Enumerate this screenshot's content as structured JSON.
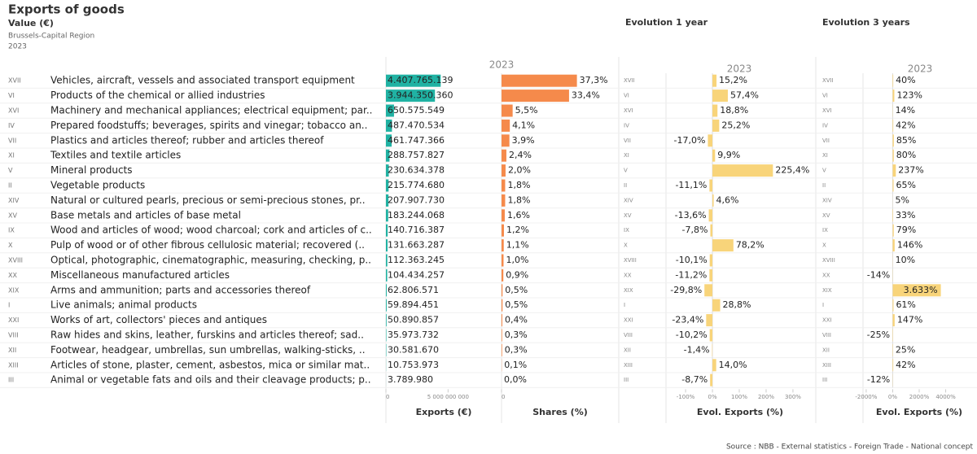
{
  "title": "Exports of goods",
  "subtitle": "Value (€)",
  "region": "Brussels-Capital Region",
  "year": "2023",
  "section_1y": "Evolution 1 year",
  "section_3y": "Evolution 3 years",
  "source": "Source : NBB - External statistics - Foreign Trade - National concept",
  "chart_data": [
    {
      "type": "hbar",
      "header": "2023",
      "xlabel": "Exports (€)",
      "color": "#20b2a3",
      "codes": [
        "XVII",
        "VI",
        "XVI",
        "IV",
        "VII",
        "XI",
        "V",
        "II",
        "XIV",
        "XV",
        "IX",
        "X",
        "XVIII",
        "XX",
        "XIX",
        "I",
        "XXI",
        "VIII",
        "XII",
        "XIII",
        "III"
      ],
      "categories": [
        "Vehicles, aircraft, vessels and associated transport equipment",
        "Products of the chemical or allied industries",
        "Machinery and mechanical appliances; electrical equipment; par..",
        "Prepared foodstuffs; beverages, spirits and vinegar; tobacco an..",
        "Plastics and articles thereof; rubber and articles thereof",
        "Textiles and textile articles",
        "Mineral products",
        "Vegetable products",
        "Natural or cultured pearls, precious or semi-precious stones, pr..",
        "Base metals and articles of base metal",
        "Wood and articles of wood; wood charcoal; cork and articles of c..",
        "Pulp of wood or of other fibrous cellulosic material; recovered (..",
        "Optical, photographic, cinematographic, measuring, checking, p..",
        "Miscellaneous manufactured articles",
        "Arms and ammunition; parts and accessories thereof",
        "Live animals; animal products",
        "Works of art, collectors' pieces and antiques",
        "Raw hides and skins, leather, furskins and articles thereof; sad..",
        "Footwear, headgear, umbrellas, sun umbrellas, walking-sticks, ..",
        "Articles of stone, plaster, cement, asbestos, mica or similar mat..",
        "Animal or vegetable fats and oils and their cleavage products; p.."
      ],
      "values": [
        4407765139,
        3944350360,
        650575549,
        487470534,
        461747366,
        288757827,
        230634378,
        215774680,
        207907730,
        183244068,
        140716387,
        131663287,
        112363245,
        104434257,
        62806571,
        59894451,
        50890857,
        35973732,
        30581670,
        10753973,
        3789980
      ],
      "value_labels": [
        "4.407.765.139",
        "3.944.350.360",
        "650.575.549",
        "487.470.534",
        "461.747.366",
        "288.757.827",
        "230.634.378",
        "215.774.680",
        "207.907.730",
        "183.244.068",
        "140.716.387",
        "131.663.287",
        "112.363.245",
        "104.434.257",
        "62.806.571",
        "59.894.451",
        "50.890.857",
        "35.973.732",
        "30.581.670",
        "10.753.973",
        "3.789.980"
      ],
      "xlim": [
        0,
        9300000000
      ],
      "xticks": [
        0,
        {
          "value": 5000000000,
          "label": "5 000 000 000"
        }
      ]
    },
    {
      "type": "hbar",
      "xlabel": "Shares (%)",
      "color": "#f58a4b",
      "values": [
        37.3,
        33.4,
        5.5,
        4.1,
        3.9,
        2.4,
        2.0,
        1.8,
        1.8,
        1.6,
        1.2,
        1.1,
        1.0,
        0.9,
        0.5,
        0.5,
        0.4,
        0.3,
        0.3,
        0.1,
        0.0
      ],
      "value_labels": [
        "37,3%",
        "33,4%",
        "5,5%",
        "4,1%",
        "3,9%",
        "2,4%",
        "2,0%",
        "1,8%",
        "1,8%",
        "1,6%",
        "1,2%",
        "1,1%",
        "1,0%",
        "0,9%",
        "0,5%",
        "0,5%",
        "0,4%",
        "0,3%",
        "0,3%",
        "0,1%",
        "0,0%"
      ],
      "xlim": [
        0,
        58
      ],
      "xticks": [
        0
      ]
    },
    {
      "type": "hbar",
      "header": "2023",
      "xlabel": "Evol. Exports (%)",
      "color": "#f8d47a",
      "categories": [
        "XVII",
        "VI",
        "XVI",
        "IV",
        "VII",
        "XI",
        "V",
        "II",
        "XIV",
        "XV",
        "IX",
        "X",
        "XVIII",
        "XX",
        "XIX",
        "I",
        "XXI",
        "VIII",
        "XII",
        "XIII",
        "III"
      ],
      "values": [
        15.2,
        57.4,
        18.8,
        25.2,
        -17.0,
        9.9,
        225.4,
        -11.1,
        4.6,
        -13.6,
        -7.8,
        78.2,
        -10.1,
        -11.2,
        -29.8,
        28.8,
        -23.4,
        -10.2,
        -1.4,
        14.0,
        -8.7
      ],
      "value_labels": [
        "15,2%",
        "57,4%",
        "18,8%",
        "25,2%",
        "-17,0%",
        "9,9%",
        "225,4%",
        "-11,1%",
        "4,6%",
        "-13,6%",
        "-7,8%",
        "78,2%",
        "-10,1%",
        "-11,2%",
        "-29,8%",
        "28,8%",
        "-23,4%",
        "-10,2%",
        "-1,4%",
        "14,0%",
        "-8,7%"
      ],
      "xlim": [
        -173,
        379
      ],
      "xticks": [
        {
          "value": -100,
          "label": "-100%"
        },
        {
          "value": 0,
          "label": "0%"
        },
        {
          "value": 100,
          "label": "100%"
        },
        {
          "value": 200,
          "label": "200%"
        },
        {
          "value": 300,
          "label": "300%"
        }
      ]
    },
    {
      "type": "hbar",
      "header": "2023",
      "xlabel": "Evol. Exports (%)",
      "color": "#f8d47a",
      "categories": [
        "XVII",
        "VI",
        "XVI",
        "IV",
        "VII",
        "XI",
        "V",
        "II",
        "XIV",
        "XV",
        "IX",
        "X",
        "XVIII",
        "XX",
        "XIX",
        "I",
        "XXI",
        "VIII",
        "XII",
        "XIII",
        "III"
      ],
      "values": [
        40,
        123,
        14,
        42,
        85,
        80,
        237,
        65,
        5,
        33,
        79,
        146,
        10,
        -14,
        3633,
        61,
        147,
        -25,
        25,
        42,
        -12
      ],
      "value_labels": [
        "40%",
        "123%",
        "14%",
        "42%",
        "85%",
        "80%",
        "237%",
        "65%",
        "5%",
        "33%",
        "79%",
        "146%",
        "10%",
        "-14%",
        "3.633%",
        "61%",
        "147%",
        "-25%",
        "25%",
        "42%",
        "-12%"
      ],
      "xlim": [
        -2240,
        6240
      ],
      "xticks": [
        {
          "value": -2000,
          "label": "-2000%"
        },
        {
          "value": 0,
          "label": "0%"
        },
        {
          "value": 2000,
          "label": "2000%"
        },
        {
          "value": 4000,
          "label": "4000%"
        }
      ]
    }
  ]
}
